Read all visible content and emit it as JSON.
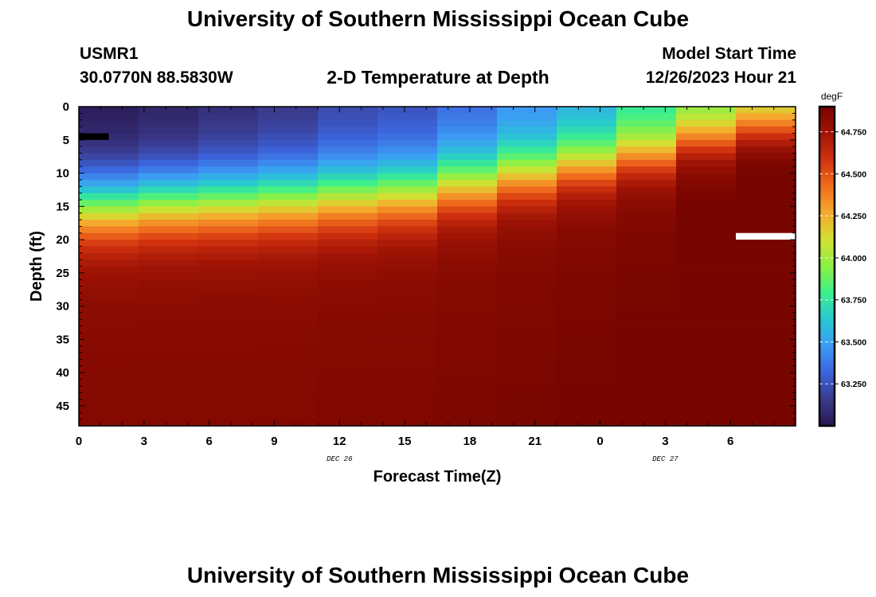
{
  "header": {
    "title": "University of Southern Mississippi Ocean Cube",
    "station_id": "USMR1",
    "coordinates": "30.0770N  88.5830W",
    "plot_title": "2-D Temperature at Depth",
    "model_start_label": "Model Start Time",
    "model_start_value": "12/26/2023 Hour 21"
  },
  "footer": {
    "title": "University of Southern Mississippi Ocean Cube"
  },
  "colors": {
    "missing_low": "#000000",
    "missing_high": "#ffffff",
    "palette": [
      "#2a1850",
      "#3a3a8c",
      "#3c64dc",
      "#3c9bf5",
      "#28c8d2",
      "#3cf08c",
      "#8cf046",
      "#d2e132",
      "#f5aa2d",
      "#f06e1e",
      "#d2320f",
      "#a01405",
      "#780500"
    ]
  },
  "chart_data": {
    "type": "heatmap",
    "title": "2-D Temperature at Depth",
    "xlabel": "Forecast Time(Z)",
    "ylabel": "Depth (ft)",
    "x_tick_labels": [
      "0",
      "3",
      "6",
      "9",
      "12",
      "15",
      "18",
      "21",
      "0",
      "3",
      "6"
    ],
    "x_date_labels": [
      {
        "label": "DEC 26",
        "at_hour": 12
      },
      {
        "label": "DEC 27",
        "at_hour": 27
      }
    ],
    "xlim_hours": [
      0,
      33
    ],
    "time_steps_hours": [
      0,
      2.75,
      5.5,
      8.25,
      11,
      13.75,
      16.5,
      19.25,
      22,
      24.75,
      27.5,
      30.25
    ],
    "y_tick_labels": [
      "0",
      "5",
      "10",
      "15",
      "20",
      "25",
      "30",
      "35",
      "40",
      "45"
    ],
    "ylim_ft": [
      0,
      48
    ],
    "depth_step_ft": 1,
    "colorbar": {
      "units": "degF",
      "range": [
        63.0,
        64.9
      ],
      "tick_labels": [
        "63.250",
        "63.500",
        "63.750",
        "64.000",
        "64.250",
        "64.500",
        "64.750"
      ],
      "tick_values": [
        63.25,
        63.5,
        63.75,
        64.0,
        64.25,
        64.5,
        64.75
      ]
    },
    "profile_params": [
      {
        "time_h": 0,
        "surface_degF": 63.0,
        "thermocline_ft": 15.5,
        "width_ft": 3.2,
        "bottom_degF": 64.82
      },
      {
        "time_h": 2.75,
        "surface_degF": 63.03,
        "thermocline_ft": 15.0,
        "width_ft": 3.2,
        "bottom_degF": 64.82
      },
      {
        "time_h": 5.5,
        "surface_degF": 63.08,
        "thermocline_ft": 14.8,
        "width_ft": 3.2,
        "bottom_degF": 64.82
      },
      {
        "time_h": 8.25,
        "surface_degF": 63.12,
        "thermocline_ft": 14.5,
        "width_ft": 3.2,
        "bottom_degF": 64.82
      },
      {
        "time_h": 11,
        "surface_degF": 63.18,
        "thermocline_ft": 14.0,
        "width_ft": 3.2,
        "bottom_degF": 64.83
      },
      {
        "time_h": 13.75,
        "surface_degF": 63.22,
        "thermocline_ft": 13.5,
        "width_ft": 3.1,
        "bottom_degF": 64.83
      },
      {
        "time_h": 16.5,
        "surface_degF": 63.3,
        "thermocline_ft": 12.0,
        "width_ft": 3.0,
        "bottom_degF": 64.84
      },
      {
        "time_h": 19.25,
        "surface_degF": 63.4,
        "thermocline_ft": 10.5,
        "width_ft": 2.8,
        "bottom_degF": 64.85
      },
      {
        "time_h": 22,
        "surface_degF": 63.5,
        "thermocline_ft": 9.0,
        "width_ft": 2.6,
        "bottom_degF": 64.86
      },
      {
        "time_h": 24.75,
        "surface_degF": 63.68,
        "thermocline_ft": 7.5,
        "width_ft": 2.4,
        "bottom_degF": 64.87
      },
      {
        "time_h": 27.5,
        "surface_degF": 63.82,
        "thermocline_ft": 5.0,
        "width_ft": 2.2,
        "bottom_degF": 64.9
      },
      {
        "time_h": 30.25,
        "surface_degF": 63.95,
        "thermocline_ft": 3.5,
        "width_ft": 2.0,
        "bottom_degF": 64.93
      }
    ],
    "missing_cells": [
      {
        "time_h": 0,
        "depth_ft": 4,
        "fill": "low"
      },
      {
        "time_h": 30.25,
        "depth_ft": 19,
        "fill": "high"
      }
    ]
  }
}
